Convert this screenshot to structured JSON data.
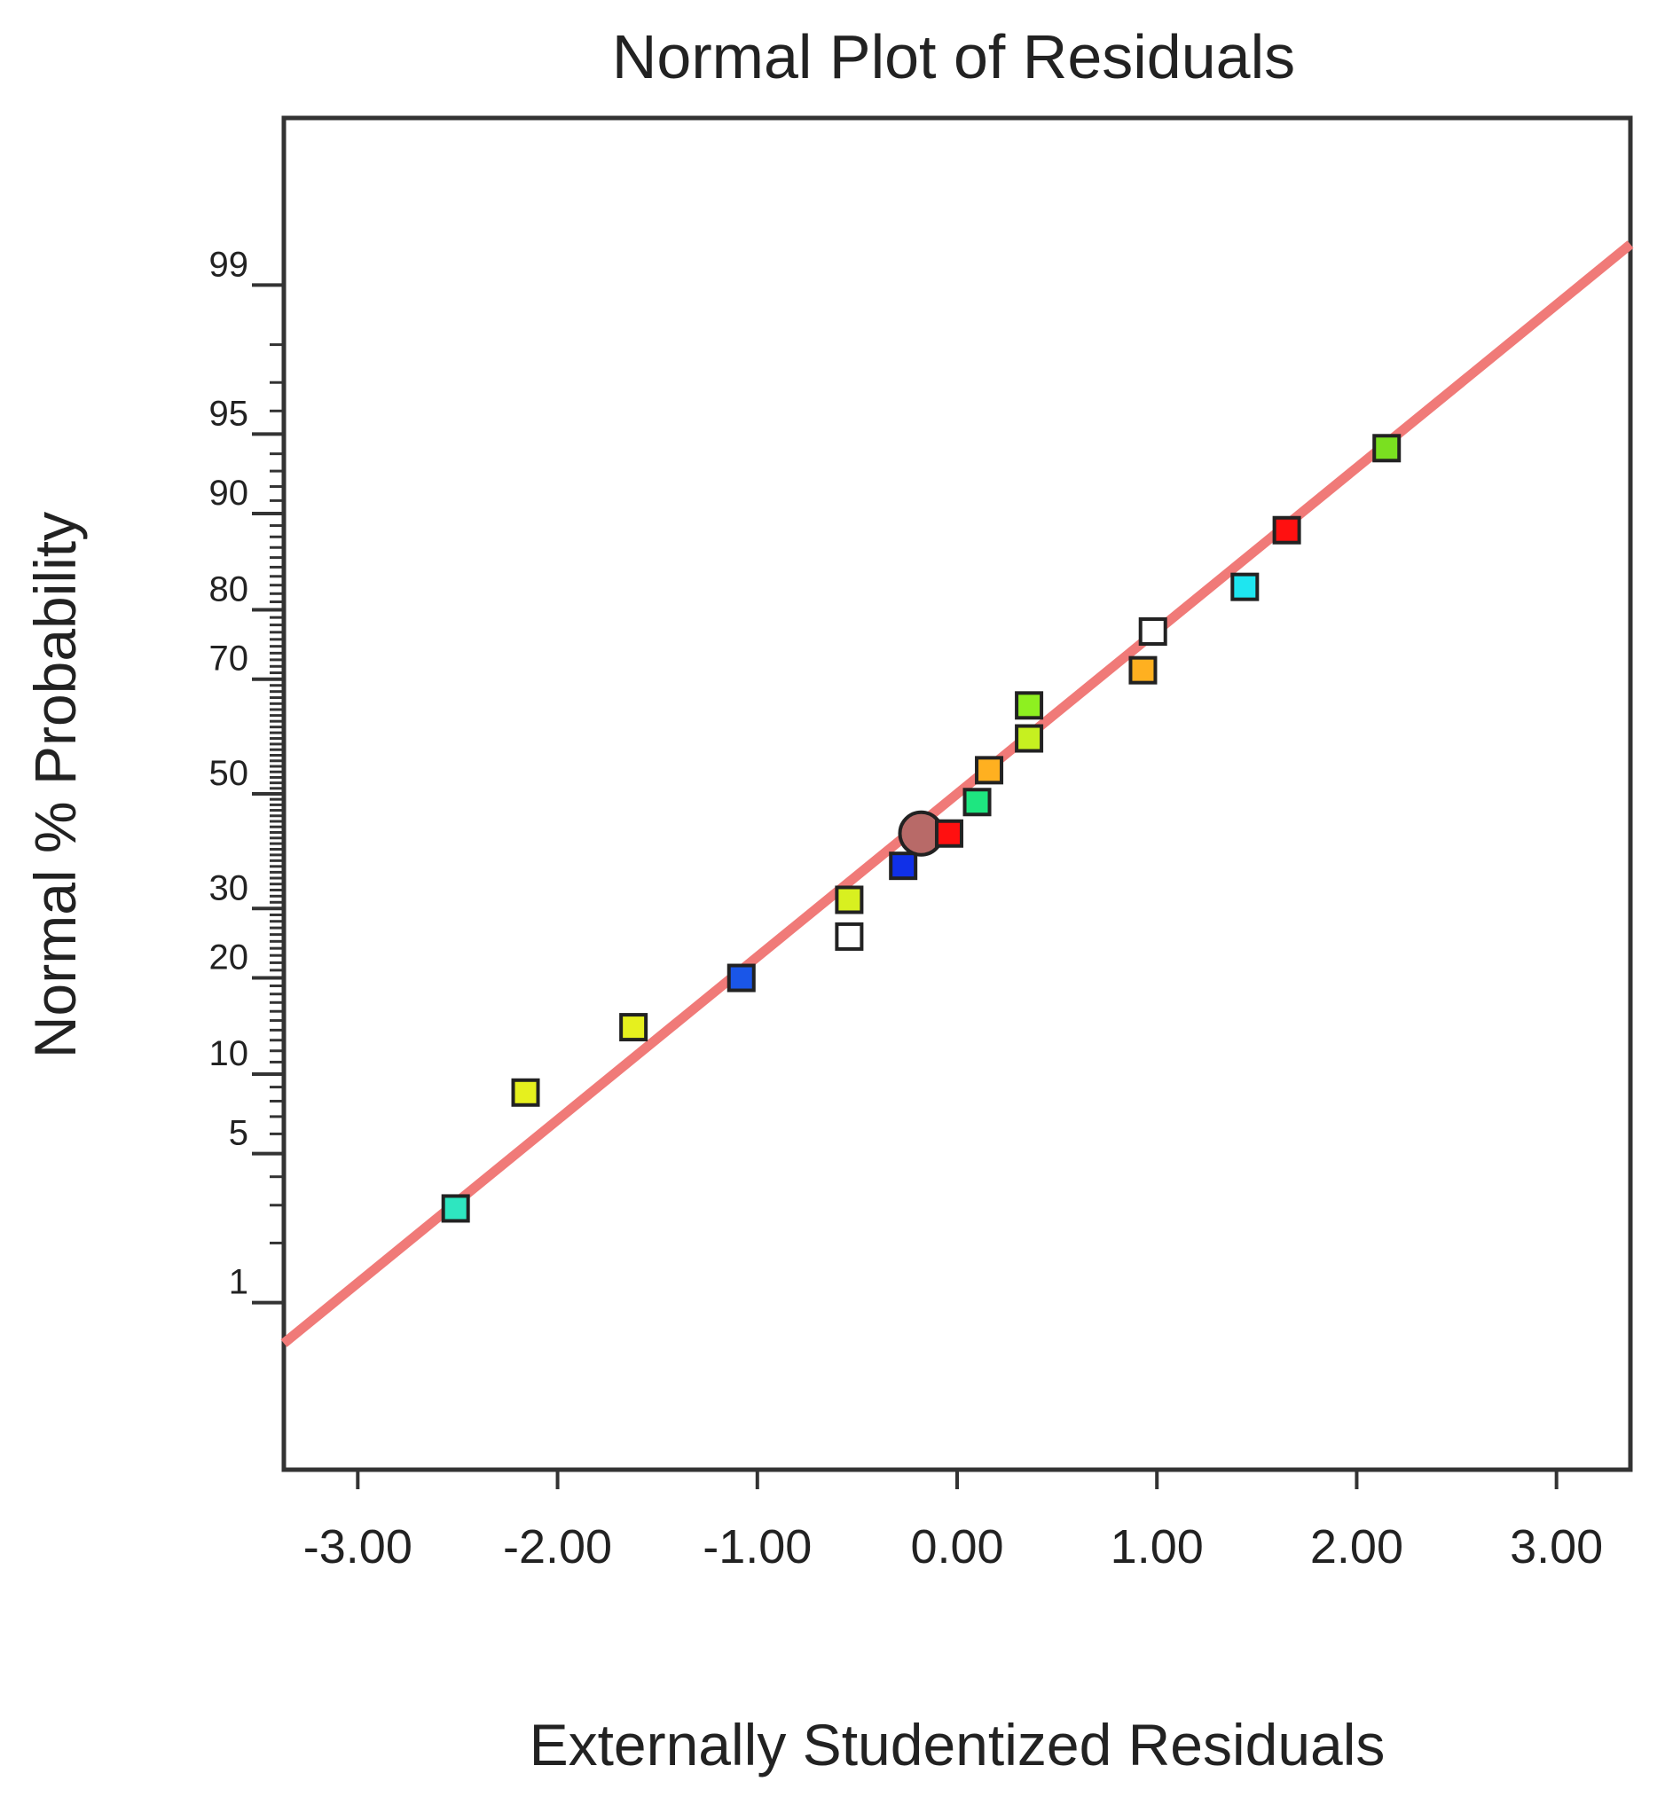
{
  "chart_data": {
    "type": "scatter",
    "title": "Normal Plot of Residuals",
    "xlabel": "Externally Studentized Residuals",
    "ylabel": "Normal % Probability",
    "y_scale": "normal-probability",
    "xlim": [
      -3.37,
      3.37
    ],
    "ylim": [
      0.1,
      99.9
    ],
    "x_ticks": [
      -3.0,
      -2.0,
      -1.0,
      0.0,
      1.0,
      2.0,
      3.0
    ],
    "x_tick_labels": [
      "-3.00",
      "-2.00",
      "-1.00",
      "0.00",
      "1.00",
      "2.00",
      "3.00"
    ],
    "y_ticks": [
      1,
      5,
      10,
      20,
      30,
      50,
      70,
      80,
      90,
      95,
      99
    ],
    "y_tick_labels": [
      "1",
      "5",
      "10",
      "20",
      "30",
      "50",
      "70",
      "80",
      "90",
      "95",
      "99"
    ],
    "grid": false,
    "reference_line": {
      "color": "#f07a78",
      "points": [
        [
          -3.37,
          0.6
        ],
        [
          3.37,
          99.4
        ]
      ]
    },
    "points": [
      {
        "x": -2.51,
        "y": 2.9,
        "color": "#2ee6c0",
        "marker": "square"
      },
      {
        "x": -2.16,
        "y": 8.6,
        "color": "#e6f01e",
        "marker": "square"
      },
      {
        "x": -1.62,
        "y": 14.3,
        "color": "#e6f01e",
        "marker": "square"
      },
      {
        "x": -1.08,
        "y": 20.0,
        "color": "#1a56e8",
        "marker": "square"
      },
      {
        "x": -0.54,
        "y": 25.7,
        "color": "#ffffff",
        "marker": "square"
      },
      {
        "x": -0.54,
        "y": 31.4,
        "color": "#d8f020",
        "marker": "square"
      },
      {
        "x": -0.27,
        "y": 37.1,
        "color": "#1030e8",
        "marker": "square"
      },
      {
        "x": -0.18,
        "y": 42.8,
        "color": "#b86a68",
        "marker": "circle"
      },
      {
        "x": -0.04,
        "y": 42.8,
        "color": "#ff1010",
        "marker": "square"
      },
      {
        "x": 0.1,
        "y": 48.5,
        "color": "#1ee680",
        "marker": "square"
      },
      {
        "x": 0.16,
        "y": 54.3,
        "color": "#ffb020",
        "marker": "square"
      },
      {
        "x": 0.36,
        "y": 60.0,
        "color": "#c6f020",
        "marker": "square"
      },
      {
        "x": 0.36,
        "y": 65.7,
        "color": "#8ef020",
        "marker": "square"
      },
      {
        "x": 0.93,
        "y": 71.4,
        "color": "#ffb020",
        "marker": "square"
      },
      {
        "x": 0.98,
        "y": 77.1,
        "color": "#ffffff",
        "marker": "square"
      },
      {
        "x": 1.44,
        "y": 82.8,
        "color": "#1ee6f0",
        "marker": "square"
      },
      {
        "x": 1.65,
        "y": 88.6,
        "color": "#ff1010",
        "marker": "square"
      },
      {
        "x": 2.15,
        "y": 94.3,
        "color": "#7ae020",
        "marker": "square"
      }
    ]
  }
}
